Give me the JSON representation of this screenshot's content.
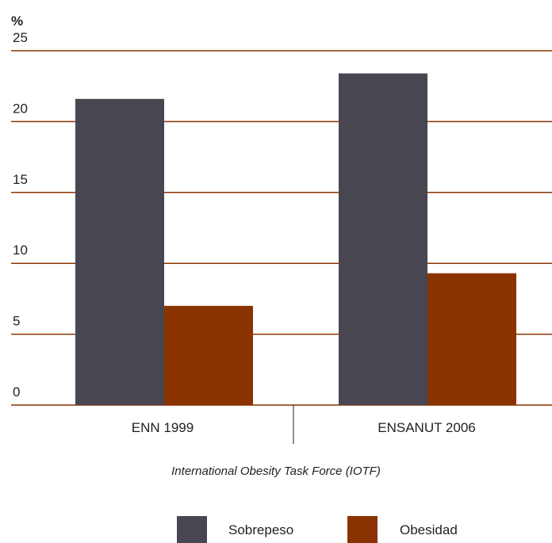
{
  "chart_data": {
    "type": "bar",
    "unit_label": "%",
    "categories": [
      "ENN 1999",
      "ENSANUT 2006"
    ],
    "series": [
      {
        "name": "Sobrepeso",
        "values": [
          21.6,
          23.4
        ],
        "color": "#484650"
      },
      {
        "name": "Obesidad",
        "values": [
          7.0,
          9.3
        ],
        "color": "#8b3300"
      }
    ],
    "xlabel": "International Obesity Task Force (IOTF)",
    "ylim": [
      0,
      25
    ],
    "yticks": [
      0,
      5,
      10,
      15,
      20,
      25
    ],
    "grid": true,
    "legend_position": "bottom",
    "gridline_color": "#8b3300"
  }
}
